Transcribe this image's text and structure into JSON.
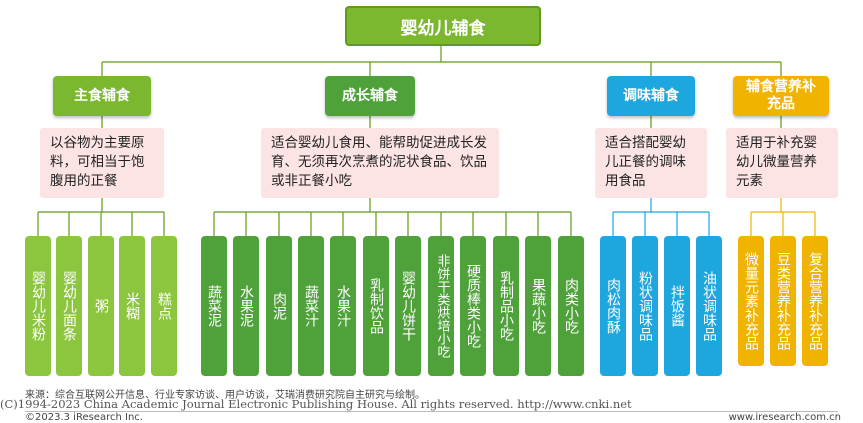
{
  "title": "婴幼儿辅食",
  "categories": [
    {
      "name": "主食辅食",
      "description": "以谷物为主要原料，可相当于饱腹用的正餐",
      "items": [
        "婴幼儿米粉",
        "婴幼儿面条",
        "粥",
        "米糊",
        "糕点"
      ]
    },
    {
      "name": "成长辅食",
      "description": "适合婴幼儿食用、能帮助促进成长发育、无须再次烹煮的泥状食品、饮品或非正餐小吃",
      "items": [
        "蔬菜泥",
        "水果泥",
        "肉泥",
        "蔬菜汁",
        "水果汁",
        "乳制饮品",
        "婴幼儿饼干",
        "非饼干类烘培小吃",
        "硬质棒类小吃",
        "乳制品小吃",
        "果蔬小吃",
        "肉类小吃"
      ]
    },
    {
      "name": "调味辅食",
      "description": "适合搭配婴幼儿正餐的调味用食品",
      "items": [
        "肉松肉酥",
        "粉状调味品",
        "拌饭酱",
        "油状调味品"
      ]
    },
    {
      "name": "辅食营养补充品",
      "description": "适用于补充婴幼儿微量营养元素",
      "items": [
        "微量元素补充品",
        "豆类营养补充品",
        "复合营养补充品"
      ]
    }
  ],
  "footer": {
    "source": "来源：综合互联网公开信息、行业专家访谈、用户访谈，艾瑞消费研究院自主研究与绘制。",
    "copyright": "©2023.3 iResearch Inc.",
    "website": "www.iresearch.com.cn",
    "watermark": "(C)1994-2023 China Academic Journal Electronic Publishing House. All rights reserved.    http://www.cnki.net"
  },
  "colors": {
    "root": "#7cb82f",
    "category_1": "#7cb82f",
    "category_2": "#4fa13a",
    "category_3": "#1ea6de",
    "category_4": "#f0b400",
    "description_bg": "#fbe4e3"
  }
}
